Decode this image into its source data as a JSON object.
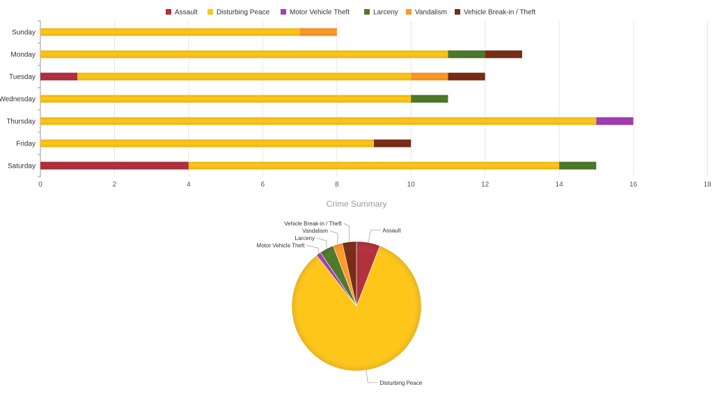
{
  "chart_data": [
    {
      "type": "bar",
      "orientation": "horizontal",
      "stacked": true,
      "categories": [
        "Sunday",
        "Monday",
        "Tuesday",
        "Wednesday",
        "Thursday",
        "Friday",
        "Saturday"
      ],
      "series": [
        {
          "name": "Assault",
          "color": "#b3303f",
          "values": [
            0,
            0,
            1,
            0,
            0,
            0,
            4
          ]
        },
        {
          "name": "Disturbing Peace",
          "color": "#ffc61a",
          "values": [
            7,
            11,
            9,
            10,
            15,
            9,
            10
          ]
        },
        {
          "name": "Motor Vehicle Theft",
          "color": "#a53eb5",
          "values": [
            0,
            0,
            0,
            0,
            1,
            0,
            0
          ]
        },
        {
          "name": "Larceny",
          "color": "#4f7a2c",
          "values": [
            0,
            1,
            0,
            1,
            0,
            0,
            1
          ]
        },
        {
          "name": "Vandalism",
          "color": "#ff9a26",
          "values": [
            1,
            0,
            1,
            0,
            0,
            0,
            0
          ]
        },
        {
          "name": "Vehicle Break-in / Theft",
          "color": "#7a2d16",
          "values": [
            0,
            1,
            1,
            0,
            0,
            1,
            0
          ]
        }
      ],
      "xlim": [
        0,
        18
      ],
      "xticks": [
        "0",
        "2",
        "4",
        "6",
        "8",
        "10",
        "12",
        "14",
        "16",
        "18"
      ],
      "grid": true,
      "legend": "top-center"
    },
    {
      "type": "pie",
      "title": "Crime Summary",
      "slices": [
        {
          "name": "Assault",
          "color": "#b3303f",
          "value": 5
        },
        {
          "name": "Disturbing Peace",
          "color": "#ffc61a",
          "value": 71
        },
        {
          "name": "Motor Vehicle Theft",
          "color": "#a53eb5",
          "value": 1
        },
        {
          "name": "Larceny",
          "color": "#4f7a2c",
          "value": 3
        },
        {
          "name": "Vandalism",
          "color": "#ff9a26",
          "value": 2
        },
        {
          "name": "Vehicle Break-in / Theft",
          "color": "#7a2d16",
          "value": 3
        }
      ],
      "start": "top, clockwise"
    }
  ]
}
